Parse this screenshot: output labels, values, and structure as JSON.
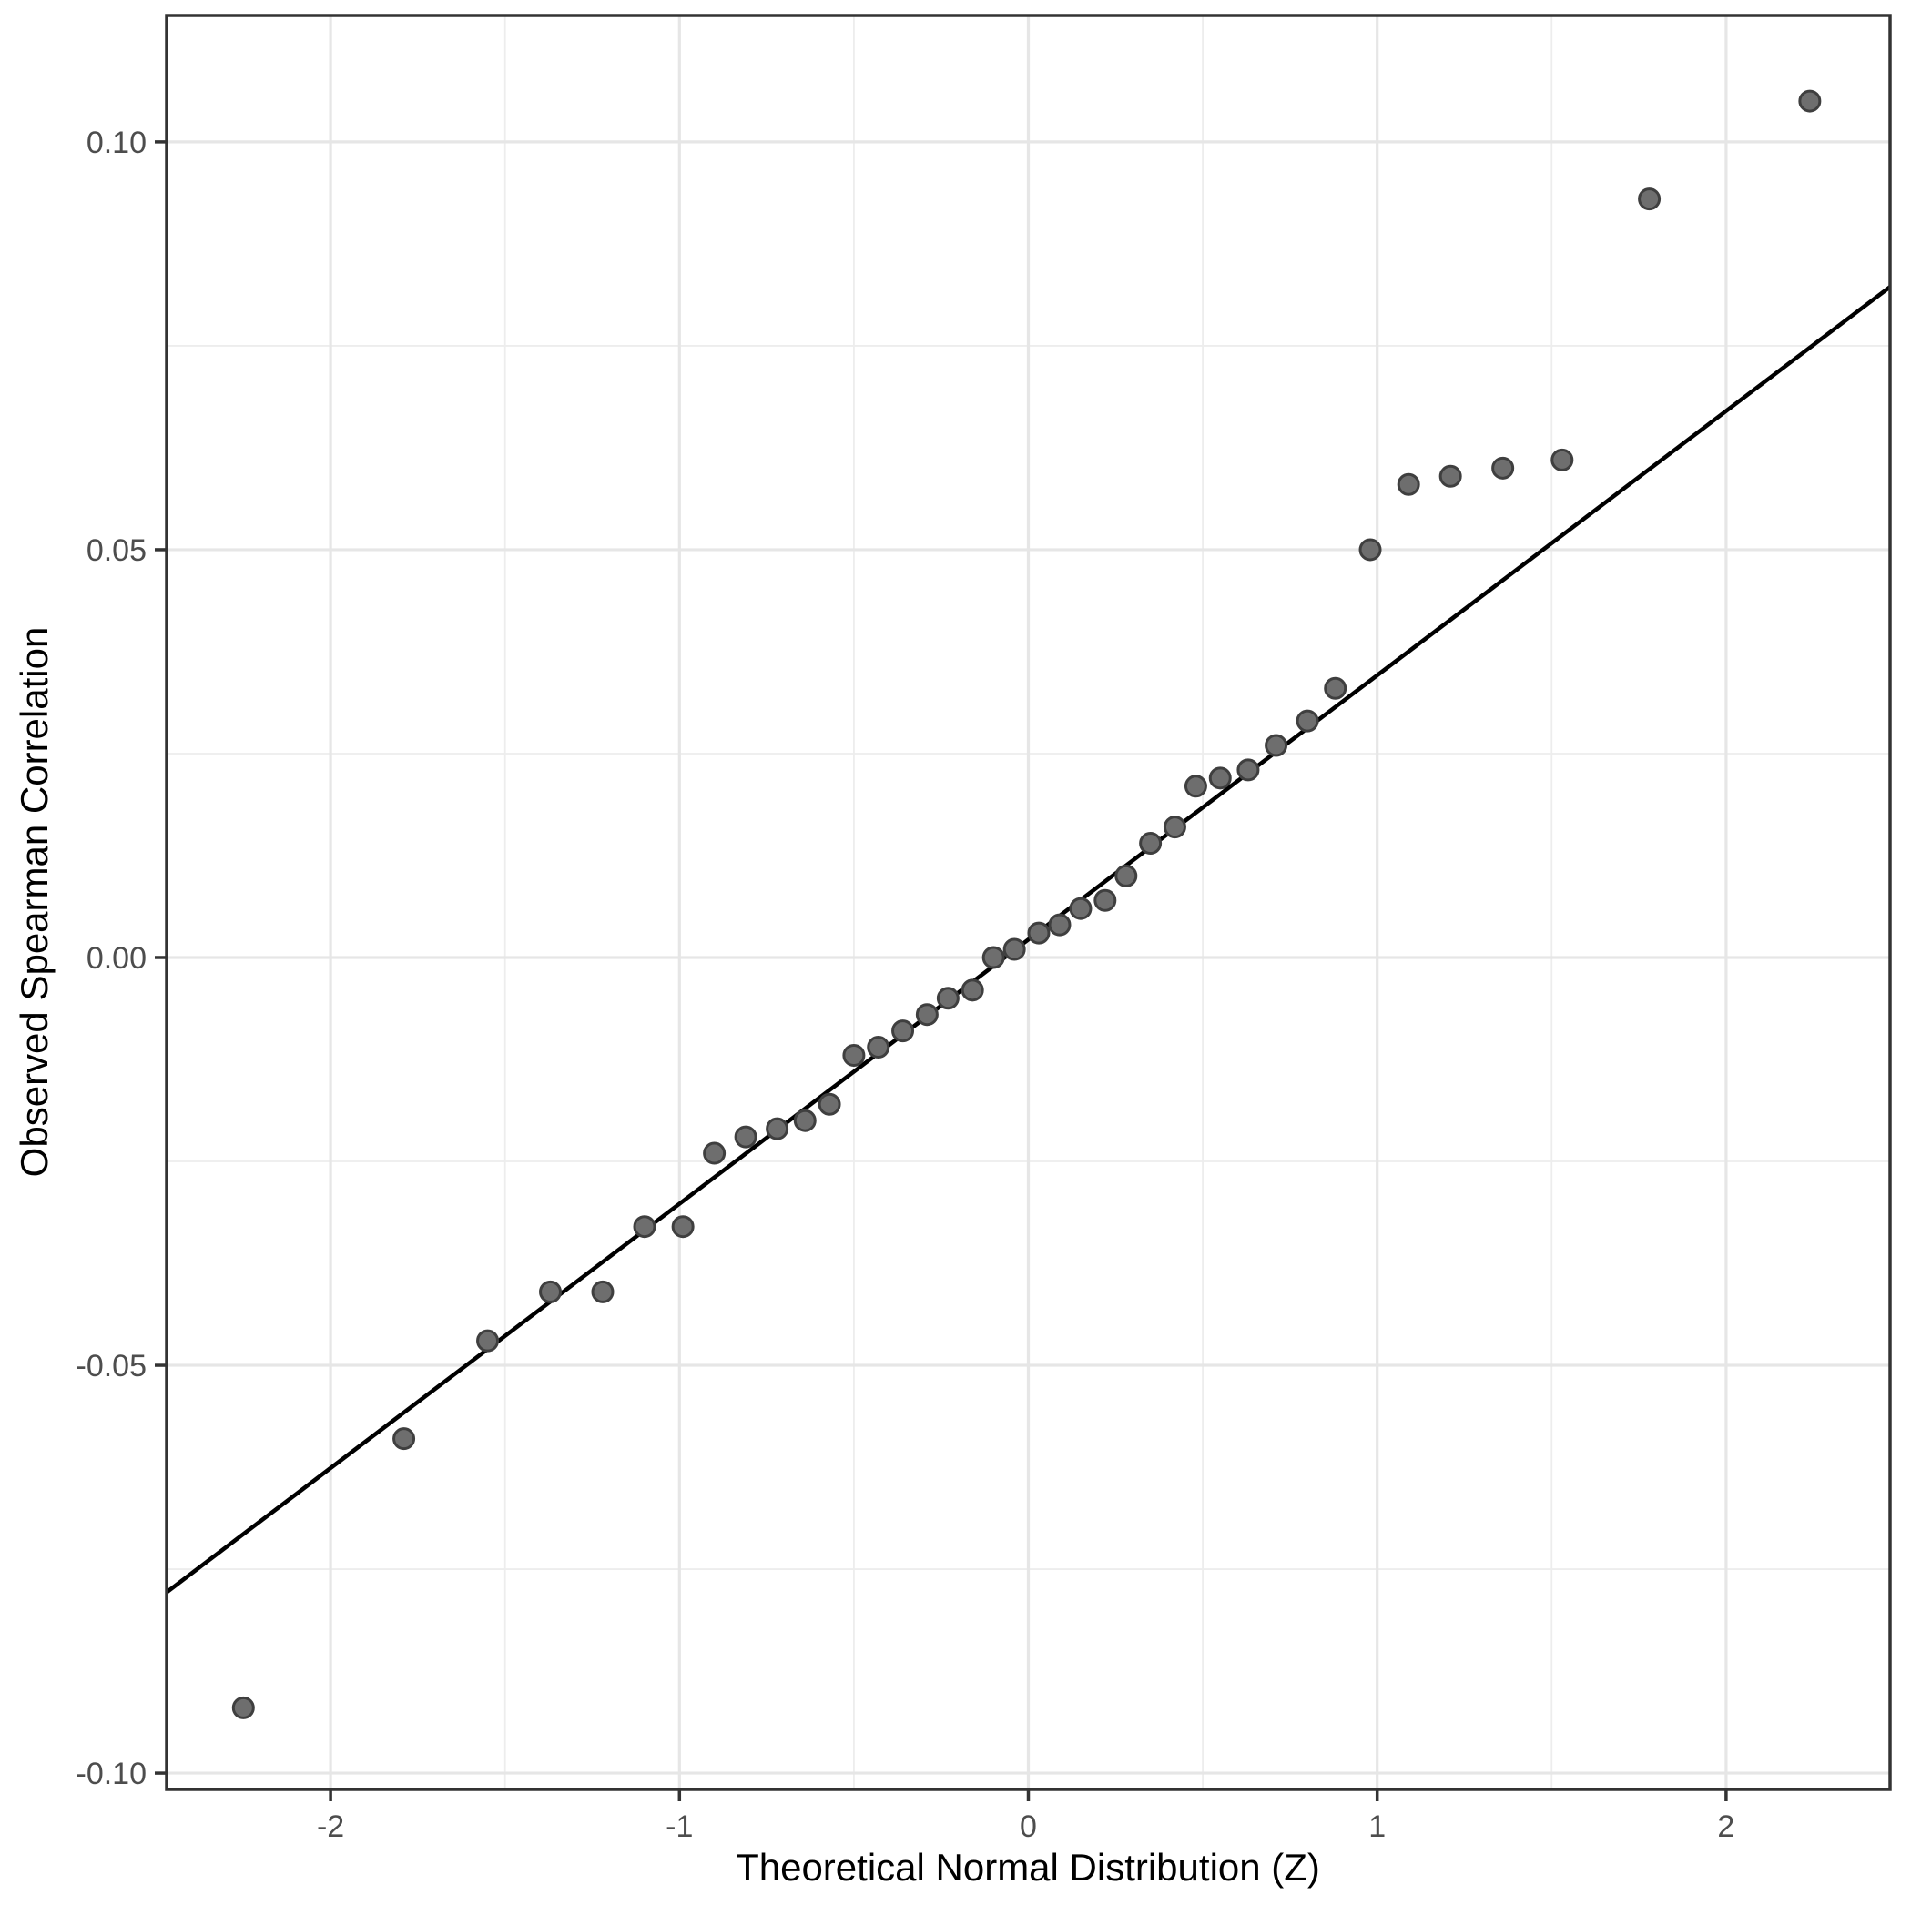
{
  "figure": {
    "background": "#ffffff"
  },
  "chart_data": {
    "type": "scatter",
    "title": "",
    "xlabel": "Theoretical Normal Distribution (Z)",
    "ylabel": "Observed Spearman Correlation",
    "xlim": [
      -2.47,
      2.47
    ],
    "ylim": [
      -0.102,
      0.1155
    ],
    "grid": "major+minor",
    "legend_position": "none",
    "x_ticks": [
      {
        "value": -2,
        "label": "-2"
      },
      {
        "value": -1,
        "label": "-1"
      },
      {
        "value": 0,
        "label": "0"
      },
      {
        "value": 1,
        "label": "1"
      },
      {
        "value": 2,
        "label": "2"
      }
    ],
    "y_ticks": [
      {
        "value": 0.1,
        "label": "0.10"
      },
      {
        "value": 0.05,
        "label": "0.05"
      },
      {
        "value": 0.0,
        "label": "0.00"
      },
      {
        "value": -0.05,
        "label": "-0.05"
      },
      {
        "value": -0.1,
        "label": "-0.10"
      }
    ],
    "x_minor_breaks": [
      -1.5,
      -0.5,
      0.5,
      1.5
    ],
    "y_minor_breaks": [
      -0.075,
      -0.025,
      0.025,
      0.075
    ],
    "points": [
      {
        "x": -2.25,
        "y": -0.092
      },
      {
        "x": -1.79,
        "y": -0.059
      },
      {
        "x": -1.55,
        "y": -0.047
      },
      {
        "x": -1.37,
        "y": -0.041
      },
      {
        "x": -1.22,
        "y": -0.041
      },
      {
        "x": -1.1,
        "y": -0.033
      },
      {
        "x": -0.99,
        "y": -0.033
      },
      {
        "x": -0.9,
        "y": -0.024
      },
      {
        "x": -0.81,
        "y": -0.022
      },
      {
        "x": -0.72,
        "y": -0.021
      },
      {
        "x": -0.64,
        "y": -0.02
      },
      {
        "x": -0.57,
        "y": -0.018
      },
      {
        "x": -0.5,
        "y": -0.012
      },
      {
        "x": -0.43,
        "y": -0.011
      },
      {
        "x": -0.36,
        "y": -0.009
      },
      {
        "x": -0.29,
        "y": -0.007
      },
      {
        "x": -0.23,
        "y": -0.005
      },
      {
        "x": -0.16,
        "y": -0.004
      },
      {
        "x": -0.1,
        "y": 0.0
      },
      {
        "x": -0.04,
        "y": 0.001
      },
      {
        "x": 0.03,
        "y": 0.003
      },
      {
        "x": 0.09,
        "y": 0.004
      },
      {
        "x": 0.15,
        "y": 0.006
      },
      {
        "x": 0.22,
        "y": 0.007
      },
      {
        "x": 0.28,
        "y": 0.01
      },
      {
        "x": 0.35,
        "y": 0.014
      },
      {
        "x": 0.42,
        "y": 0.016
      },
      {
        "x": 0.48,
        "y": 0.021
      },
      {
        "x": 0.55,
        "y": 0.022
      },
      {
        "x": 0.63,
        "y": 0.023
      },
      {
        "x": 0.71,
        "y": 0.026
      },
      {
        "x": 0.8,
        "y": 0.029
      },
      {
        "x": 0.88,
        "y": 0.033
      },
      {
        "x": 0.98,
        "y": 0.05
      },
      {
        "x": 1.09,
        "y": 0.058
      },
      {
        "x": 1.21,
        "y": 0.059
      },
      {
        "x": 1.36,
        "y": 0.06
      },
      {
        "x": 1.53,
        "y": 0.061
      },
      {
        "x": 1.78,
        "y": 0.093
      },
      {
        "x": 2.24,
        "y": 0.105
      }
    ],
    "reference_line": {
      "intercept": 0.0022,
      "slope": 0.0324,
      "x_start": -2.47,
      "x_end": 2.47
    },
    "colors": {
      "point_fill": "#6e6e6e",
      "point_stroke": "#3f3f3f",
      "grid_major": "#e6e6e6",
      "grid_minor": "#ededed",
      "panel_border": "#333333",
      "tick_mark": "#333333",
      "tick_label": "#4d4d4d",
      "axis_title": "#000000",
      "reference_line": "#000000",
      "panel_background": "#ffffff"
    }
  }
}
